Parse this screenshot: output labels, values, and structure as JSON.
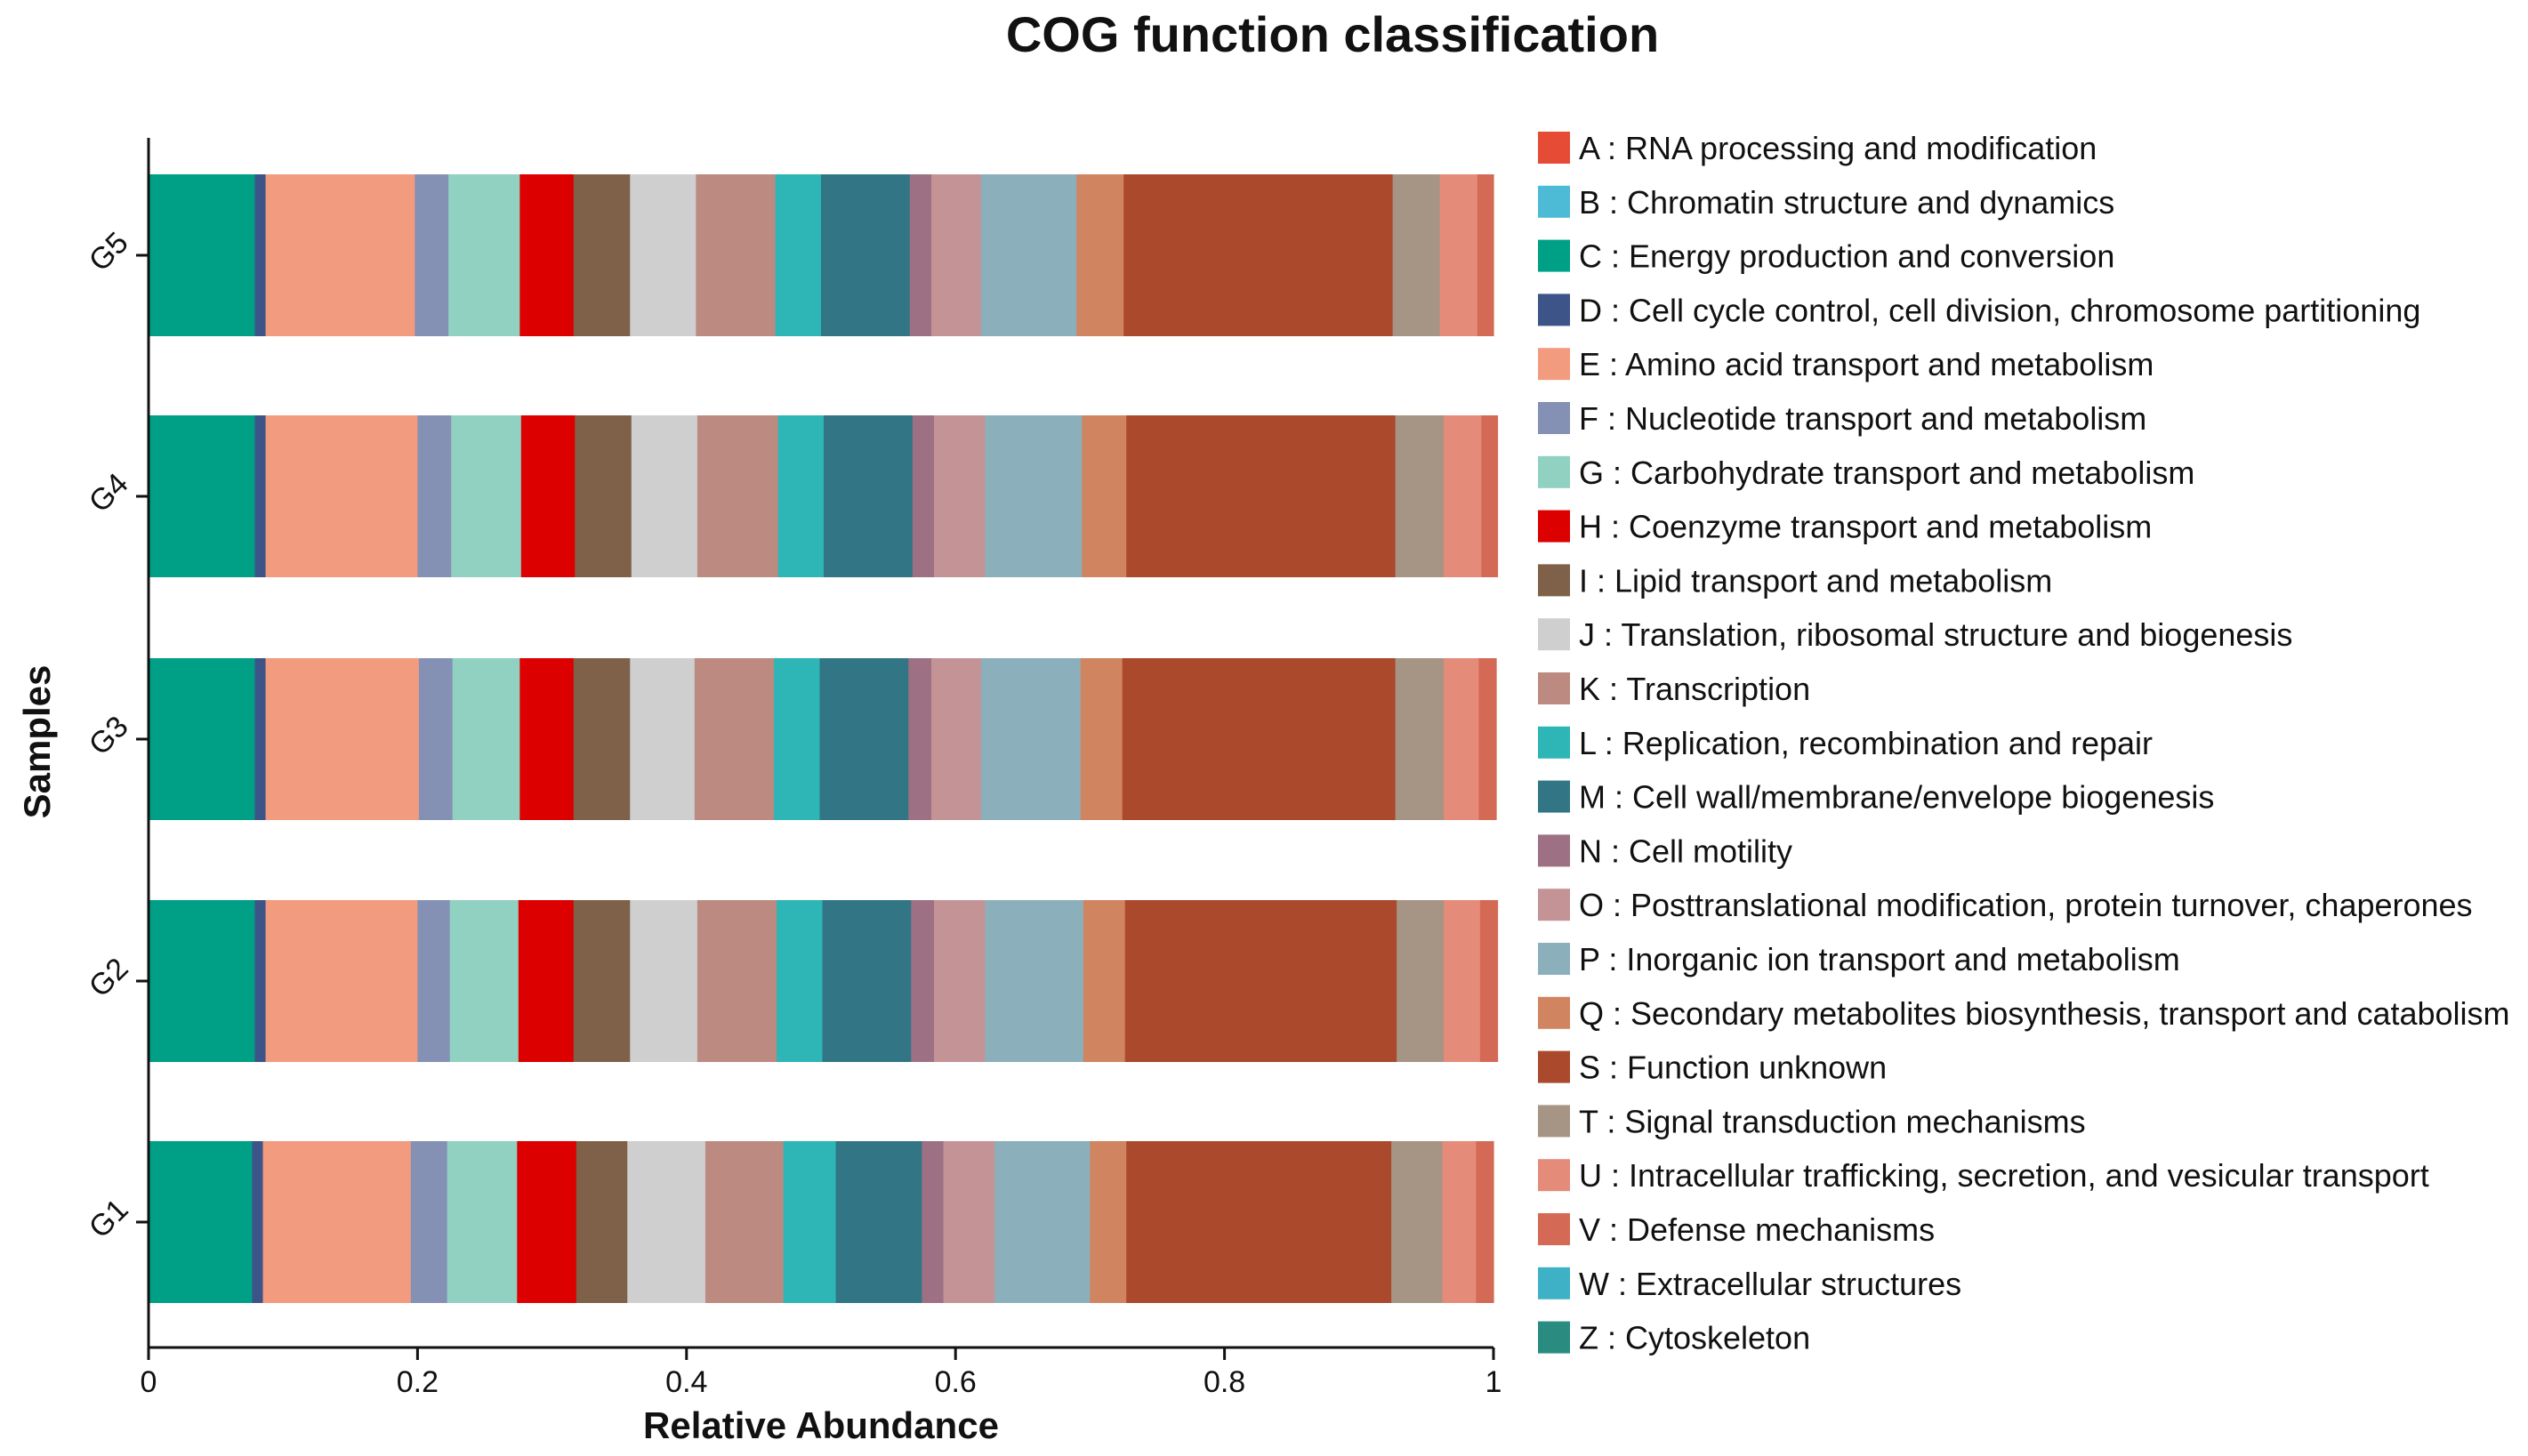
{
  "chart_data": {
    "type": "bar",
    "orientation": "horizontal",
    "stacked": true,
    "title": "COG function classification",
    "xlabel": "Relative Abundance",
    "ylabel": "Samples",
    "xlim": [
      0,
      1
    ],
    "x_ticks": [
      "0",
      "0.2",
      "0.4",
      "0.6",
      "0.8",
      "1"
    ],
    "categories": [
      "G5",
      "G4",
      "G3",
      "G2",
      "G1"
    ],
    "legend_position": "right",
    "series": [
      {
        "code": "A",
        "name": "A : RNA processing and modification",
        "color": "#E64B35",
        "values": [
          0.0,
          0.0,
          0.0,
          0.0,
          0.0
        ]
      },
      {
        "code": "B",
        "name": "B : Chromatin structure and dynamics",
        "color": "#4DBBD5",
        "values": [
          0.0,
          0.0,
          0.0,
          0.0,
          0.0
        ]
      },
      {
        "code": "C",
        "name": "C : Energy production and conversion",
        "color": "#00A087",
        "values": [
          0.079,
          0.079,
          0.079,
          0.079,
          0.077
        ]
      },
      {
        "code": "D",
        "name": "D : Cell cycle control, cell division, chromosome partitioning",
        "color": "#3C5488",
        "values": [
          0.008,
          0.008,
          0.008,
          0.008,
          0.008
        ]
      },
      {
        "code": "E",
        "name": "E : Amino acid transport and metabolism",
        "color": "#F39B7F",
        "values": [
          0.111,
          0.113,
          0.114,
          0.113,
          0.11
        ]
      },
      {
        "code": "F",
        "name": "F : Nucleotide transport and metabolism",
        "color": "#8491B4",
        "values": [
          0.025,
          0.025,
          0.025,
          0.024,
          0.027
        ]
      },
      {
        "code": "G",
        "name": "G : Carbohydrate transport and metabolism",
        "color": "#91D1C2",
        "values": [
          0.053,
          0.052,
          0.05,
          0.051,
          0.052
        ]
      },
      {
        "code": "H",
        "name": "H : Coenzyme transport and metabolism",
        "color": "#DC0000",
        "values": [
          0.04,
          0.04,
          0.04,
          0.041,
          0.044
        ]
      },
      {
        "code": "I",
        "name": "I : Lipid transport and metabolism",
        "color": "#7E6148",
        "values": [
          0.042,
          0.042,
          0.042,
          0.042,
          0.038
        ]
      },
      {
        "code": "J",
        "name": "J : Translation, ribosomal structure and biogenesis",
        "color": "#CFCFCF",
        "values": [
          0.049,
          0.049,
          0.048,
          0.05,
          0.058
        ]
      },
      {
        "code": "K",
        "name": "K : Transcription",
        "color": "#BC8A80",
        "values": [
          0.059,
          0.06,
          0.059,
          0.059,
          0.058
        ]
      },
      {
        "code": "L",
        "name": "L : Replication, recombination and repair",
        "color": "#2EB5B5",
        "values": [
          0.034,
          0.034,
          0.034,
          0.034,
          0.039
        ]
      },
      {
        "code": "M",
        "name": "M : Cell wall/membrane/envelope biogenesis",
        "color": "#327585",
        "values": [
          0.066,
          0.066,
          0.066,
          0.066,
          0.064
        ]
      },
      {
        "code": "N",
        "name": "N : Cell motility",
        "color": "#9E7083",
        "values": [
          0.016,
          0.016,
          0.017,
          0.017,
          0.016
        ]
      },
      {
        "code": "O",
        "name": "O : Posttranslational modification, protein turnover, chaperones",
        "color": "#C49396",
        "values": [
          0.037,
          0.038,
          0.037,
          0.038,
          0.038
        ]
      },
      {
        "code": "P",
        "name": "P : Inorganic ion transport and metabolism",
        "color": "#8BAFBB",
        "values": [
          0.071,
          0.072,
          0.074,
          0.073,
          0.071
        ]
      },
      {
        "code": "Q",
        "name": "Q : Secondary metabolites biosynthesis, transport and catabolism",
        "color": "#D0845F",
        "values": [
          0.035,
          0.033,
          0.031,
          0.031,
          0.027
        ]
      },
      {
        "code": "S",
        "name": "S : Function unknown",
        "color": "#AB492C",
        "values": [
          0.2,
          0.2,
          0.203,
          0.202,
          0.197
        ]
      },
      {
        "code": "T",
        "name": "T : Signal transduction mechanisms",
        "color": "#A69485",
        "values": [
          0.035,
          0.036,
          0.036,
          0.035,
          0.038
        ]
      },
      {
        "code": "U",
        "name": "U : Intracellular trafficking, secretion, and vesicular transport",
        "color": "#E58B7A",
        "values": [
          0.028,
          0.028,
          0.026,
          0.027,
          0.025
        ]
      },
      {
        "code": "V",
        "name": "V : Defense mechanisms",
        "color": "#D46A55",
        "values": [
          0.012,
          0.012,
          0.013,
          0.013,
          0.013
        ]
      },
      {
        "code": "W",
        "name": "W : Extracellular structures",
        "color": "#3FB1C7",
        "values": [
          0.0,
          0.0,
          0.0,
          0.0,
          0.0
        ]
      },
      {
        "code": "Z",
        "name": "Z : Cytoskeleton",
        "color": "#2A8C80",
        "values": [
          0.0,
          0.0,
          0.0,
          0.0,
          0.0
        ]
      }
    ]
  }
}
